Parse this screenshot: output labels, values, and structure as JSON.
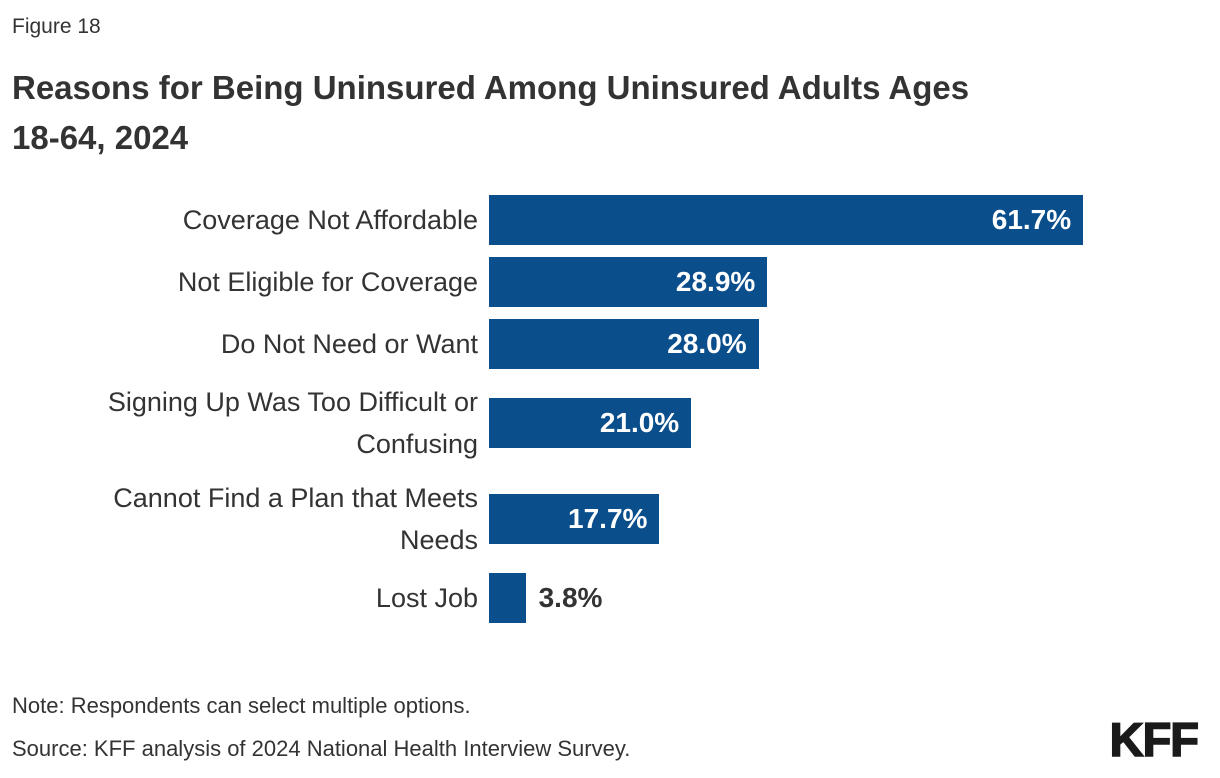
{
  "header": {
    "figure_label": "Figure 18",
    "title_line1": "Reasons for Being Uninsured Among Uninsured Adults Ages",
    "title_line2": "18-64, 2024"
  },
  "chart_data": {
    "type": "bar",
    "orientation": "horizontal",
    "title": "Reasons for Being Uninsured Among Uninsured Adults Ages 18-64, 2024",
    "categories": [
      "Coverage Not Affordable",
      "Not Eligible for Coverage",
      "Do Not Need or Want",
      "Signing Up Was Too Difficult or Confusing",
      "Cannot Find a Plan that Meets Needs",
      "Lost Job"
    ],
    "category_lines": [
      [
        "Coverage Not Affordable"
      ],
      [
        "Not Eligible for Coverage"
      ],
      [
        "Do Not Need or Want"
      ],
      [
        "Signing Up Was Too Difficult or",
        "Confusing"
      ],
      [
        "Cannot Find a Plan that Meets",
        "Needs"
      ],
      [
        "Lost Job"
      ]
    ],
    "values": [
      61.7,
      28.9,
      28.0,
      21.0,
      17.7,
      3.8
    ],
    "value_labels": [
      "61.7%",
      "28.9%",
      "28.0%",
      "21.0%",
      "17.7%",
      "3.8%"
    ],
    "bar_color": "#0A4E8C",
    "value_label_color_inside": "#FFFFFF",
    "value_label_color_outside": "#333333",
    "xlim": [
      0,
      65
    ],
    "grid": false,
    "legend": false,
    "axis_lines": false
  },
  "footer": {
    "note": "Note: Respondents can select multiple options.",
    "source": "Source: KFF analysis of 2024 National Health Interview Survey.",
    "logo": "KFF"
  }
}
